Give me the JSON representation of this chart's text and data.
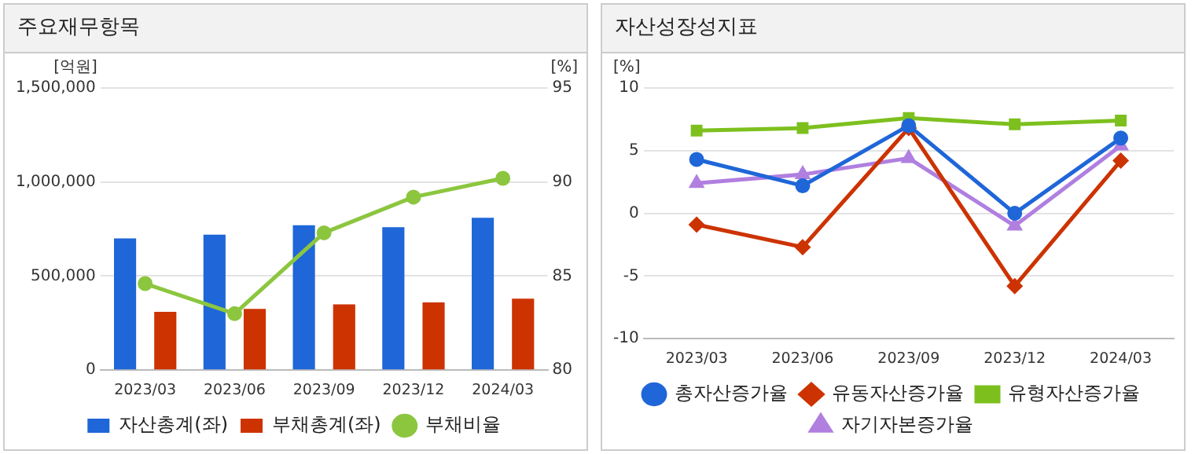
{
  "chart_data": [
    {
      "type": "bar",
      "title": "주요재무항목",
      "ylabel": "[억원]",
      "y2label": "[%]",
      "categories": [
        "2023/03",
        "2023/06",
        "2023/09",
        "2023/12",
        "2024/03"
      ],
      "series": [
        {
          "name": "자산총계(좌)",
          "color": "#1f66d8",
          "values": [
            700000,
            720000,
            770000,
            760000,
            810000
          ]
        },
        {
          "name": "부채총계(좌)",
          "color": "#cc3300",
          "values": [
            310000,
            325000,
            350000,
            360000,
            380000
          ]
        },
        {
          "name": "부채비율",
          "type": "line",
          "axis": "y2",
          "marker": "circle",
          "color": "#8cc63f",
          "values": [
            84.6,
            83.0,
            87.3,
            89.2,
            90.2
          ]
        }
      ],
      "ylim": [
        0,
        1500000
      ],
      "yticks": [
        {
          "value": 0,
          "label": "0"
        },
        {
          "value": 500000,
          "label": "500,000"
        },
        {
          "value": 1000000,
          "label": "1,000,000"
        },
        {
          "value": 1500000,
          "label": "1,500,000"
        }
      ],
      "y2lim": [
        80,
        95
      ],
      "y2ticks": [
        80,
        85,
        90,
        95
      ],
      "grid": "y",
      "legend": "bottom"
    },
    {
      "type": "line",
      "title": "자산성장성지표",
      "ylabel": "[%]",
      "categories": [
        "2023/03",
        "2023/06",
        "2023/09",
        "2023/12",
        "2024/03"
      ],
      "series": [
        {
          "name": "총자산증가율",
          "color": "#1f66d8",
          "marker": "circle",
          "values": [
            4.3,
            2.2,
            7.0,
            0.0,
            6.0
          ]
        },
        {
          "name": "유동자산증가율",
          "color": "#cc3300",
          "marker": "diamond",
          "values": [
            -0.9,
            -2.7,
            6.8,
            -5.8,
            4.2
          ]
        },
        {
          "name": "유형자산증가율",
          "color": "#7dc01e",
          "marker": "square",
          "values": [
            6.6,
            6.8,
            7.6,
            7.1,
            7.4
          ]
        },
        {
          "name": "자기자본증가율",
          "color": "#b07fe0",
          "marker": "triangle",
          "values": [
            2.4,
            3.1,
            4.4,
            -1.0,
            5.4
          ]
        }
      ],
      "ylim": [
        -10,
        10
      ],
      "yticks": [
        -10,
        -5,
        0,
        5,
        10
      ],
      "grid": "y",
      "legend": "bottom"
    }
  ]
}
